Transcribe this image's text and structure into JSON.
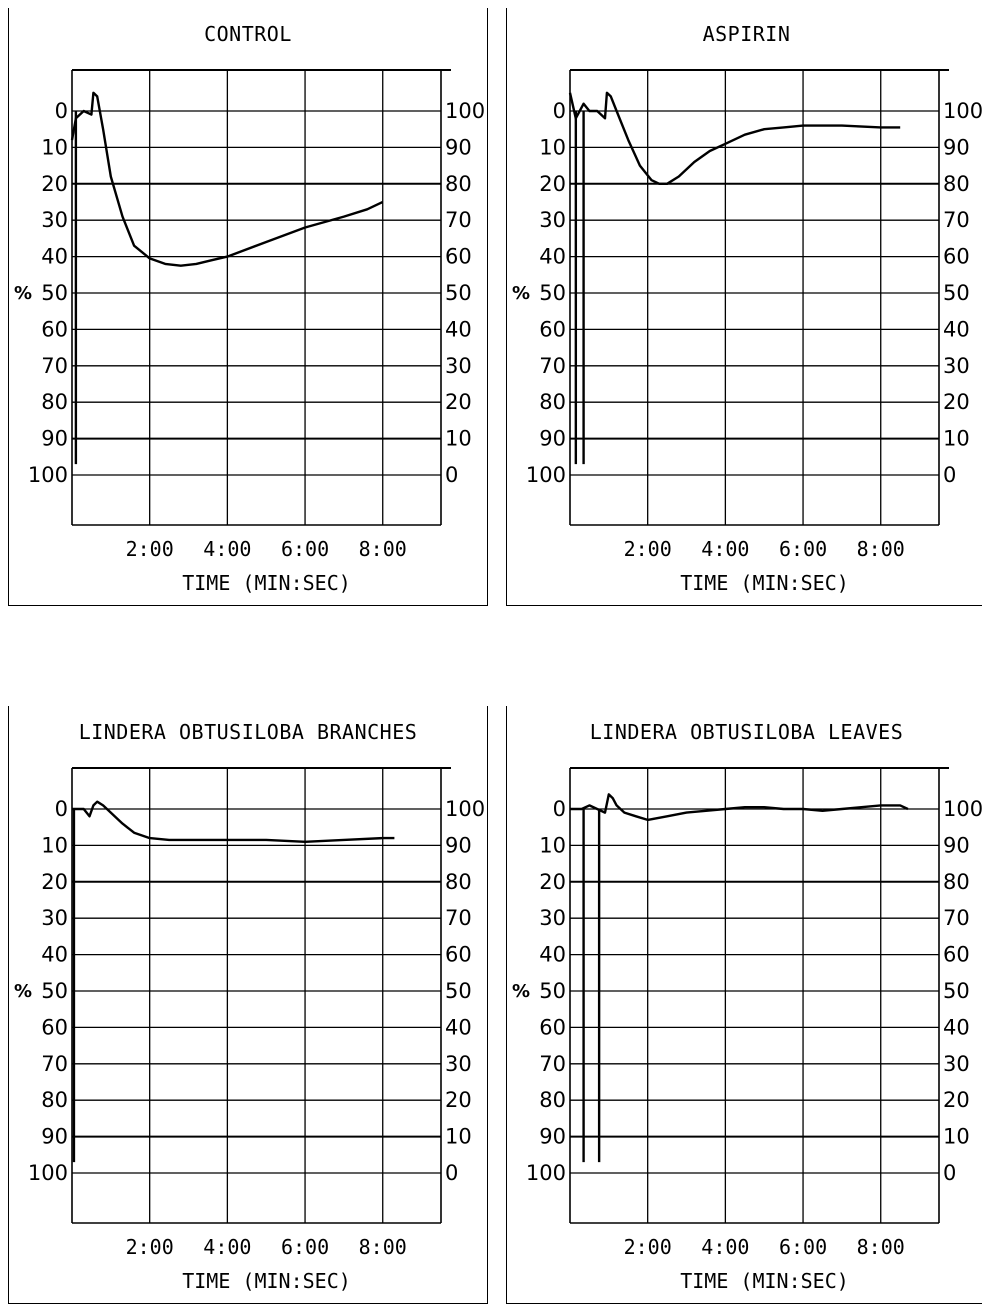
{
  "chart_data": [
    {
      "type": "line",
      "title": "CONTROL",
      "xlabel": "TIME (MIN:SEC)",
      "x_ticks": [
        "2:00",
        "4:00",
        "6:00",
        "8:00"
      ],
      "y_left_ticks": [
        "0",
        "10",
        "20",
        "30",
        "40",
        "50",
        "60",
        "70",
        "80",
        "90",
        "100"
      ],
      "y_right_ticks": [
        "100",
        "90",
        "80",
        "70",
        "60",
        "50",
        "40",
        "30",
        "20",
        "10",
        "0"
      ],
      "y_unit_label": "%",
      "xlim": [
        0,
        9.5
      ],
      "ylim": [
        0,
        100
      ],
      "series": [
        {
          "x": [
            0.0,
            0.1,
            0.3,
            0.5,
            0.55,
            0.65,
            0.8,
            1.0,
            1.3,
            1.6,
            2.0,
            2.4,
            2.8,
            3.2,
            3.6,
            4.0,
            5.0,
            6.0,
            7.0,
            7.6,
            8.0
          ],
          "y": [
            8,
            2,
            0,
            1,
            -5,
            -4,
            5,
            18,
            29,
            37,
            40.5,
            42,
            42.5,
            42,
            41,
            40,
            36,
            32,
            29,
            27,
            25
          ]
        }
      ],
      "spikes": [
        {
          "x": 0.1,
          "to": 97
        }
      ]
    },
    {
      "type": "line",
      "title": "ASPIRIN",
      "xlabel": "TIME (MIN:SEC)",
      "x_ticks": [
        "2:00",
        "4:00",
        "6:00",
        "8:00"
      ],
      "y_left_ticks": [
        "0",
        "10",
        "20",
        "30",
        "40",
        "50",
        "60",
        "70",
        "80",
        "90",
        "100"
      ],
      "y_right_ticks": [
        "100",
        "90",
        "80",
        "70",
        "60",
        "50",
        "40",
        "30",
        "20",
        "10",
        "0"
      ],
      "y_unit_label": "%",
      "xlim": [
        0,
        9.5
      ],
      "ylim": [
        0,
        100
      ],
      "series": [
        {
          "x": [
            0.0,
            0.15,
            0.35,
            0.5,
            0.7,
            0.9,
            0.95,
            1.05,
            1.2,
            1.5,
            1.8,
            2.1,
            2.3,
            2.5,
            2.8,
            3.2,
            3.6,
            4.0,
            4.5,
            5.0,
            5.5,
            6.0,
            7.0,
            8.0,
            8.5
          ],
          "y": [
            -5,
            2,
            -2,
            0,
            0,
            2,
            -5,
            -4,
            0,
            8,
            15,
            19,
            20,
            20,
            18,
            14,
            11,
            9,
            6.5,
            5,
            4.5,
            4,
            4,
            4.5,
            4.5
          ]
        }
      ],
      "spikes": [
        {
          "x": 0.15,
          "to": 97
        },
        {
          "x": 0.35,
          "to": 97
        }
      ]
    },
    {
      "type": "line",
      "title": "LINDERA OBTUSILOBA BRANCHES",
      "xlabel": "TIME (MIN:SEC)",
      "x_ticks": [
        "2:00",
        "4:00",
        "6:00",
        "8:00"
      ],
      "y_left_ticks": [
        "0",
        "10",
        "20",
        "30",
        "40",
        "50",
        "60",
        "70",
        "80",
        "90",
        "100"
      ],
      "y_right_ticks": [
        "100",
        "90",
        "80",
        "70",
        "60",
        "50",
        "40",
        "30",
        "20",
        "10",
        "0"
      ],
      "y_unit_label": "%",
      "xlim": [
        0,
        9.5
      ],
      "ylim": [
        0,
        100
      ],
      "series": [
        {
          "x": [
            0.0,
            0.3,
            0.45,
            0.55,
            0.65,
            0.8,
            1.0,
            1.3,
            1.6,
            2.0,
            2.5,
            3.0,
            4.0,
            5.0,
            6.0,
            7.0,
            8.0,
            8.3
          ],
          "y": [
            0,
            0,
            2,
            -1,
            -2,
            -1,
            1,
            4,
            6.5,
            8,
            8.5,
            8.5,
            8.5,
            8.5,
            9,
            8.5,
            8,
            8
          ]
        }
      ],
      "spikes": [
        {
          "x": 0.05,
          "to": 97
        }
      ]
    },
    {
      "type": "line",
      "title": "LINDERA OBTUSILOBA LEAVES",
      "xlabel": "TIME (MIN:SEC)",
      "x_ticks": [
        "2:00",
        "4:00",
        "6:00",
        "8:00"
      ],
      "y_left_ticks": [
        "0",
        "10",
        "20",
        "30",
        "40",
        "50",
        "60",
        "70",
        "80",
        "90",
        "100"
      ],
      "y_right_ticks": [
        "100",
        "90",
        "80",
        "70",
        "60",
        "50",
        "40",
        "30",
        "20",
        "10",
        "0"
      ],
      "y_unit_label": "%",
      "xlim": [
        0,
        9.5
      ],
      "ylim": [
        0,
        100
      ],
      "series": [
        {
          "x": [
            0.0,
            0.3,
            0.5,
            0.7,
            0.9,
            1.0,
            1.1,
            1.2,
            1.4,
            1.7,
            2.0,
            2.5,
            3.0,
            3.5,
            4.0,
            4.5,
            5.0,
            5.5,
            6.0,
            6.5,
            7.0,
            7.5,
            8.0,
            8.5,
            8.7
          ],
          "y": [
            0,
            0,
            -1,
            0,
            1,
            -4,
            -3,
            -1,
            1,
            2,
            3,
            2,
            1,
            0.5,
            0,
            -0.5,
            -0.5,
            0,
            0,
            0.5,
            0,
            -0.5,
            -1,
            -1,
            0
          ]
        }
      ],
      "spikes": [
        {
          "x": 0.35,
          "to": 97
        },
        {
          "x": 0.75,
          "to": 97
        }
      ]
    }
  ]
}
